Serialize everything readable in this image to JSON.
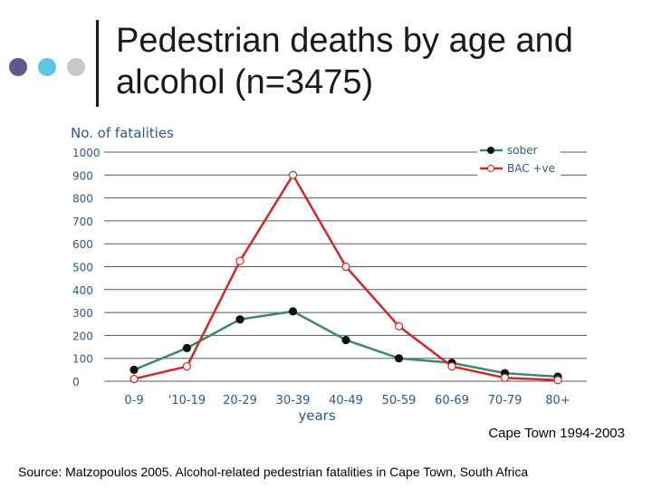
{
  "slide": {
    "title_line1": "Pedestrian deaths by age and",
    "title_line2": "alcohol (n=3475)",
    "caption": "Cape Town 1994-2003",
    "source": "Source: Matzopoulos 2005. Alcohol-related pedestrian fatalities in Cape Town, South Africa",
    "bullet_colors": [
      "#5b5b8f",
      "#5bc7e0",
      "#c8c8c8"
    ]
  },
  "chart_data": {
    "type": "line",
    "ylabel": "No. of fatalities",
    "xlabel": "years",
    "ylim": [
      0,
      1000
    ],
    "yticks": [
      0,
      100,
      200,
      300,
      400,
      500,
      600,
      700,
      800,
      900,
      1000
    ],
    "grid": true,
    "legend_position": "top-right",
    "categories": [
      "0-9",
      "'10-19",
      "20-29",
      "30-39",
      "40-49",
      "50-59",
      "60-69",
      "70-79",
      "80+"
    ],
    "series": [
      {
        "name": "sober",
        "color": "#3a8a6a",
        "marker": "filled",
        "values": [
          50,
          145,
          270,
          305,
          180,
          100,
          80,
          35,
          20
        ]
      },
      {
        "name": "BAC +ve",
        "color": "#cc2a26",
        "marker": "open",
        "values": [
          10,
          65,
          525,
          900,
          500,
          240,
          65,
          15,
          5
        ]
      }
    ]
  }
}
